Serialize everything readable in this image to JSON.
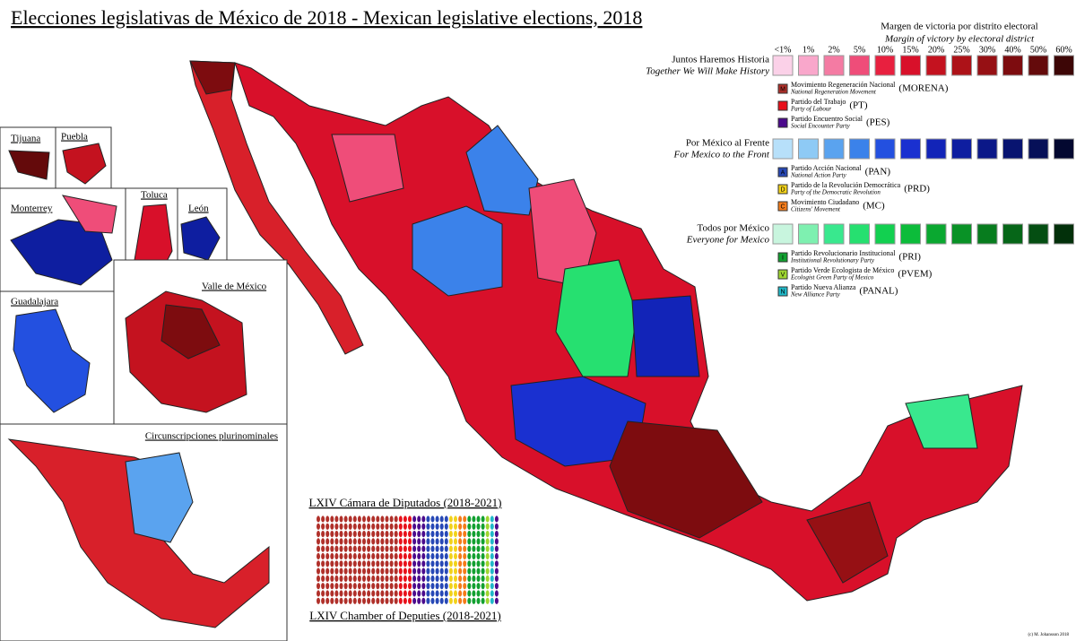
{
  "title": "Elecciones legislativas de México de 2018 - Mexican legislative elections, 2018",
  "legend": {
    "title": "Margen de victoria por distrito electoral",
    "subtitle": "Margin of victory by electoral district",
    "margins": [
      "<1%",
      "1%",
      "2%",
      "5%",
      "10%",
      "15%",
      "20%",
      "25%",
      "30%",
      "40%",
      "50%",
      "60%"
    ],
    "coalitions": [
      {
        "name": "Juntos Haremos Historia",
        "english": "Together We Will Make History",
        "colors": [
          "#fbd1e8",
          "#f9a7cb",
          "#f47ba3",
          "#ef4d79",
          "#e8203f",
          "#d8102a",
          "#c4121f",
          "#ad1218",
          "#961014",
          "#7d0c0f",
          "#640a0b",
          "#3d0606"
        ],
        "parties": [
          {
            "name": "Movimiento Regeneración Nacional",
            "english": "National Regeneration Movement",
            "abbr": "(MORENA)",
            "letter": "M",
            "color": "#b0302a"
          },
          {
            "name": "Partido del Trabajo",
            "english": "Party of Labour",
            "abbr": "(PT)",
            "color": "#e8101a"
          },
          {
            "name": "Partido Encuentro Social",
            "english": "Social Encounter Party",
            "abbr": "(PES)",
            "color": "#4b0a8c"
          }
        ]
      },
      {
        "name": "Por México al Frente",
        "english": "For Mexico to the Front",
        "colors": [
          "#b7e0fa",
          "#8ecaf5",
          "#5aa3ef",
          "#3b82ea",
          "#2350e0",
          "#1a30d0",
          "#1224b8",
          "#0e1ea0",
          "#0b1888",
          "#081470",
          "#061058",
          "#030830"
        ],
        "parties": [
          {
            "name": "Partido Acción Nacional",
            "english": "National Action Party",
            "abbr": "(PAN)",
            "letter": "A",
            "color": "#2748b6"
          },
          {
            "name": "Partido de la Revolución Democrática",
            "english": "Party of the Democratic Revolution",
            "abbr": "(PRD)",
            "letter": "D",
            "color": "#f2d21a"
          },
          {
            "name": "Movimiento Ciudadano",
            "english": "Citizens' Movement",
            "abbr": "(MC)",
            "letter": "C",
            "color": "#f57c1a"
          }
        ]
      },
      {
        "name": "Todos por México",
        "english": "Everyone for Mexico",
        "colors": [
          "#c8f5de",
          "#7ef0b0",
          "#39e88e",
          "#26e070",
          "#12d050",
          "#0cbc3a",
          "#0aa830",
          "#099226",
          "#077c1e",
          "#066618",
          "#044e12",
          "#02300a"
        ],
        "parties": [
          {
            "name": "Partido Revolucionario Institucional",
            "english": "Institutional Revolutionary Party",
            "abbr": "(PRI)",
            "letter": "I",
            "color": "#12a030"
          },
          {
            "name": "Partido Verde Ecologista de México",
            "english": "Ecologist Green Party of Mexico",
            "abbr": "(PVEM)",
            "letter": "V",
            "color": "#9fd630"
          },
          {
            "name": "Partido Nueva Alianza",
            "english": "New Alliance Party",
            "abbr": "(PANAL)",
            "letter": "N",
            "color": "#20b8c8"
          }
        ]
      }
    ]
  },
  "insets": {
    "tijuana": "Tijuana",
    "puebla": "Puebla",
    "monterrey": "Monterrey",
    "toluca": "Toluca",
    "leon": "León",
    "valle": "Valle de México",
    "guadalajara": "Guadalajara",
    "circunscripciones": "Circunscripciones plurinominales"
  },
  "chamber": {
    "spanish": "LXIV Cámara de Diputados (2018-2021)",
    "english": "LXIV Chamber of Deputies (2018-2021)"
  },
  "credit": "(c) M. Johansson 2018"
}
